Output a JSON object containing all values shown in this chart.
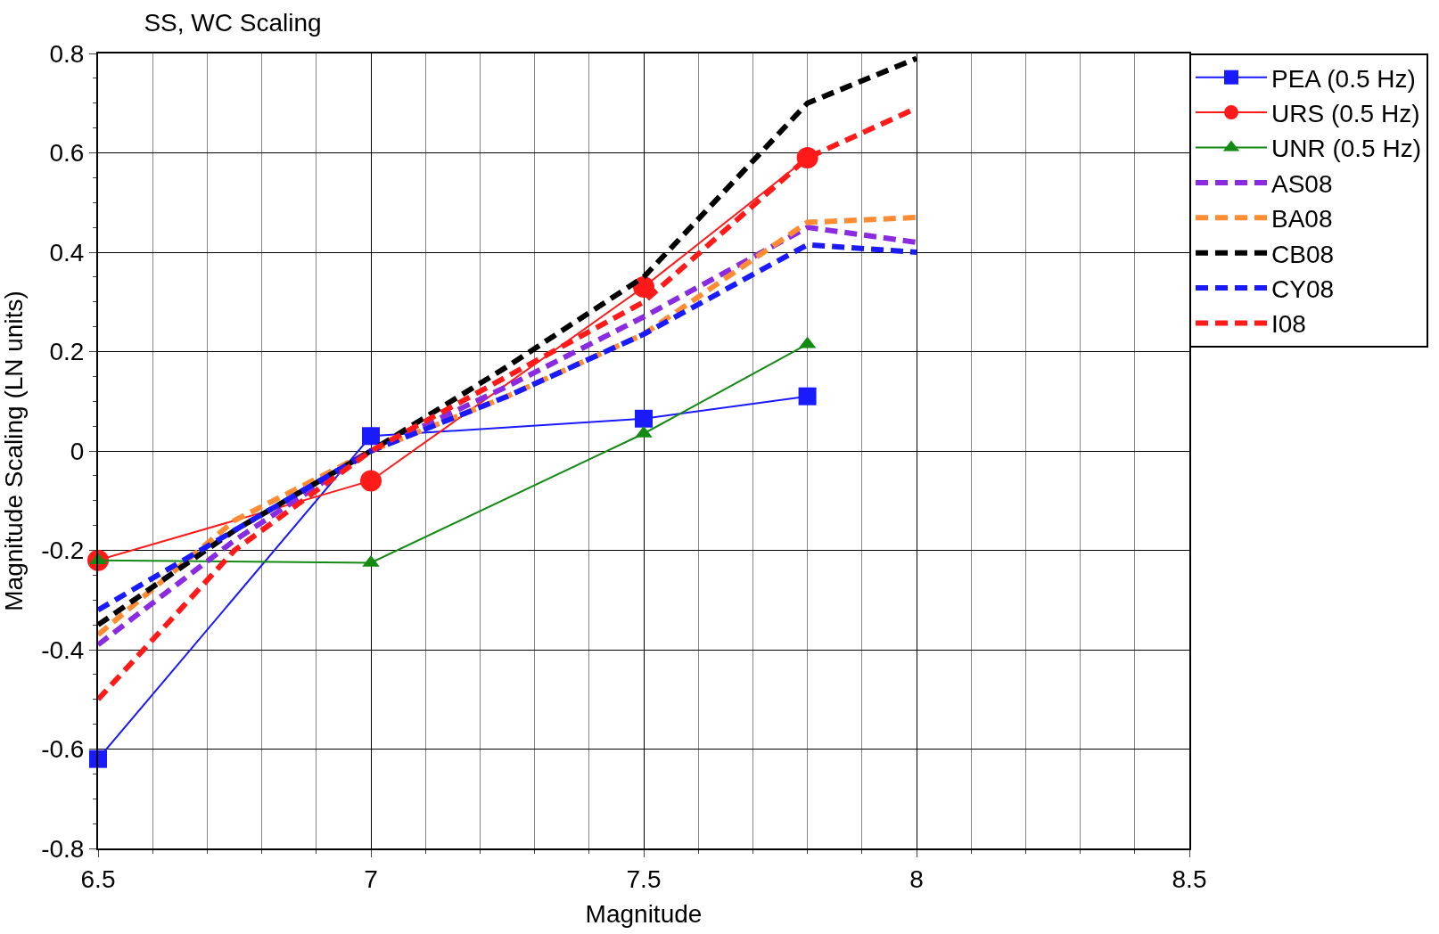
{
  "chart_data": {
    "type": "line",
    "title": "SS, WC Scaling",
    "xlabel": "Magnitude",
    "ylabel": "Magnitude Scaling (LN units)",
    "xlim": [
      6.5,
      8.5
    ],
    "xticks": [
      6.5,
      7,
      7.5,
      8,
      8.5
    ],
    "ylim": [
      -0.8,
      0.8
    ],
    "yticks": [
      -0.8,
      -0.6,
      -0.4,
      -0.2,
      0,
      0.2,
      0.4,
      0.6,
      0.8
    ],
    "grid": true,
    "legend": "top right",
    "series": [
      {
        "name": "PEA (0.5 Hz)",
        "color": "#1a1aff",
        "marker": "square",
        "line_style": "solid",
        "x": [
          6.5,
          7,
          7.5,
          7.8
        ],
        "values": [
          -0.62,
          0.03,
          0.065,
          0.11
        ]
      },
      {
        "name": "URS (0.5 Hz)",
        "color": "#ff1a1a",
        "marker": "circle",
        "line_style": "solid",
        "x": [
          6.5,
          7,
          7.5,
          7.8
        ],
        "values": [
          -0.22,
          -0.06,
          0.33,
          0.59
        ]
      },
      {
        "name": "UNR (0.5 Hz)",
        "color": "#138a13",
        "marker": "triangle",
        "line_style": "solid",
        "x": [
          6.5,
          7,
          7.5,
          7.8
        ],
        "values": [
          -0.22,
          -0.225,
          0.035,
          0.215
        ]
      },
      {
        "name": "AS08",
        "color": "#8a2be2",
        "marker": "none",
        "line_style": "dashed",
        "x": [
          6.5,
          6.75,
          7,
          7.25,
          7.5,
          7.8,
          8
        ],
        "values": [
          -0.39,
          -0.18,
          0.0,
          0.13,
          0.27,
          0.45,
          0.42
        ]
      },
      {
        "name": "BA08",
        "color": "#ff8c33",
        "marker": "none",
        "line_style": "dashed",
        "x": [
          6.5,
          6.75,
          7,
          7.25,
          7.5,
          7.8,
          8
        ],
        "values": [
          -0.37,
          -0.14,
          0.0,
          0.11,
          0.235,
          0.46,
          0.47
        ]
      },
      {
        "name": "CB08",
        "color": "#000000",
        "marker": "none",
        "line_style": "dashed",
        "x": [
          6.5,
          6.75,
          7,
          7.25,
          7.5,
          7.8,
          8
        ],
        "values": [
          -0.35,
          -0.16,
          0.0,
          0.17,
          0.35,
          0.7,
          0.79
        ]
      },
      {
        "name": "CY08",
        "color": "#1a1aff",
        "marker": "none",
        "line_style": "dashed",
        "x": [
          6.5,
          6.75,
          7,
          7.25,
          7.5,
          7.8,
          8
        ],
        "values": [
          -0.32,
          -0.16,
          0.0,
          0.11,
          0.235,
          0.415,
          0.4
        ]
      },
      {
        "name": "I08",
        "color": "#ff1a1a",
        "marker": "none",
        "line_style": "dashed",
        "x": [
          6.5,
          6.75,
          7,
          7.25,
          7.5,
          7.8,
          8
        ],
        "values": [
          -0.5,
          -0.2,
          0.0,
          0.15,
          0.3,
          0.59,
          0.69
        ]
      }
    ]
  }
}
